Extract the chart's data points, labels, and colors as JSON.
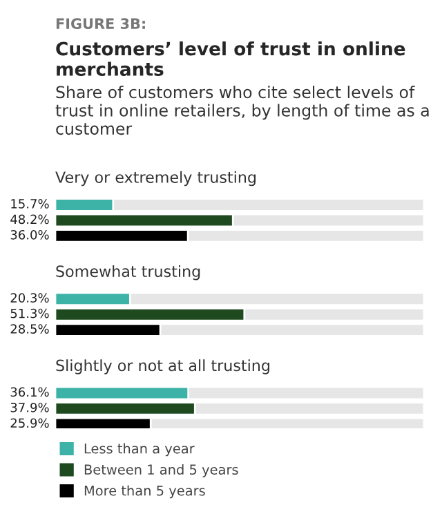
{
  "chart_data": {
    "type": "bar",
    "orientation": "horizontal",
    "title": "Customers’ level of trust in online merchants",
    "subtitle": "Share of customers who cite select levels of trust in online retailers, by length of time as a customer",
    "annotations": [
      "FIGURE 3B:"
    ],
    "categories": [
      "Very or extremely trusting",
      "Somewhat trusting",
      "Slightly or not at all trusting"
    ],
    "series": [
      {
        "name": "Less than a year",
        "color": "#3db3a8",
        "values": [
          15.7,
          20.3,
          36.1
        ],
        "value_labels": [
          "15.7%",
          "20.3%",
          "36.1%"
        ]
      },
      {
        "name": "Between 1 and 5 years",
        "color": "#1f4a1f",
        "values": [
          48.2,
          51.3,
          37.9
        ],
        "value_labels": [
          "48.2%",
          "51.3%",
          "37.9%"
        ]
      },
      {
        "name": "More than 5 years",
        "color": "#000000",
        "values": [
          36.0,
          28.5,
          25.9
        ],
        "value_labels": [
          "36.0%",
          "28.5%",
          "25.9%"
        ]
      }
    ],
    "xlim": [
      0,
      100
    ],
    "legend": "bottom"
  }
}
